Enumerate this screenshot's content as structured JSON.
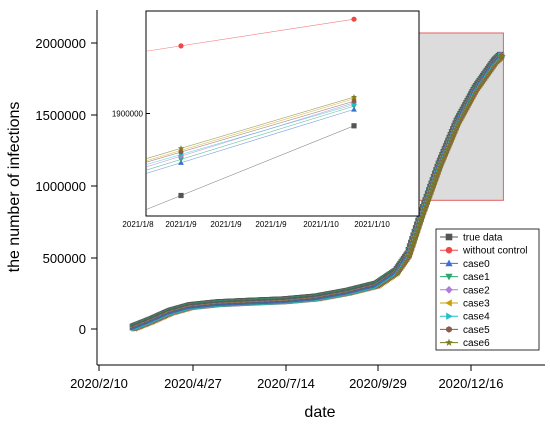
{
  "chart_data": {
    "type": "scatter",
    "title": "",
    "xlabel": "date",
    "ylabel": "the number of infections",
    "x_ticks": [
      "2020/2/10",
      "2020/4/27",
      "2020/7/14",
      "2020/9/29",
      "2020/12/16"
    ],
    "y_ticks": [
      "0",
      "500000",
      "1000000",
      "1500000",
      "2000000"
    ],
    "ylim": [
      -150000,
      2250000
    ],
    "grid": false,
    "legend_placement": "lower-right",
    "series": [
      {
        "name": "true data",
        "marker": "square",
        "color": "#555555"
      },
      {
        "name": "without control",
        "marker": "circle",
        "color": "#f04848"
      },
      {
        "name": "case0",
        "marker": "triangle-up",
        "color": "#3c6fd8"
      },
      {
        "name": "case1",
        "marker": "triangle-down",
        "color": "#2aa870"
      },
      {
        "name": "case2",
        "marker": "diamond",
        "color": "#b07cd8"
      },
      {
        "name": "case3",
        "marker": "triangle-left",
        "color": "#c8a000"
      },
      {
        "name": "case4",
        "marker": "triangle-right",
        "color": "#20c0d0"
      },
      {
        "name": "case5",
        "marker": "hexagon",
        "color": "#8a5a4a"
      },
      {
        "name": "case6",
        "marker": "star",
        "color": "#7a7a20"
      }
    ],
    "main_curve": {
      "x_dates": [
        "2020/3/10",
        "2020/3/25",
        "2020/4/10",
        "2020/4/27",
        "2020/5/20",
        "2020/6/15",
        "2020/7/14",
        "2020/8/10",
        "2020/9/5",
        "2020/9/29",
        "2020/10/15",
        "2020/10/25",
        "2020/11/5",
        "2020/11/20",
        "2020/12/5",
        "2020/12/20",
        "2021/1/5",
        "2021/1/10"
      ],
      "y_values": [
        10000,
        60000,
        120000,
        160000,
        180000,
        190000,
        200000,
        220000,
        260000,
        310000,
        400000,
        520000,
        800000,
        1150000,
        1450000,
        1680000,
        1870000,
        1910000
      ]
    },
    "zoom_region": {
      "x_range": [
        "2020/11/1",
        "2021/1/12"
      ],
      "y_range": [
        900000,
        2070000
      ]
    },
    "inset": {
      "x_ticks": [
        "2021/1/8",
        "2021/1/9",
        "2021/1/9",
        "2021/1/9",
        "2021/1/10",
        "2021/1/10"
      ],
      "y_tick": "1900000",
      "y_tick_value": 1900000,
      "ylim": [
        1875000,
        1925000
      ],
      "x_points": [
        "2021/1/9",
        "2021/1/10"
      ],
      "values": {
        "true data": [
          1880000,
          1897000
        ],
        "without control": [
          1916500,
          1923000
        ],
        "case0": [
          1888000,
          1901000
        ],
        "case1": [
          1888800,
          1901800
        ],
        "case2": [
          1889600,
          1902600
        ],
        "case3": [
          1891000,
          1903600
        ],
        "case4": [
          1890000,
          1902200
        ],
        "case5": [
          1890600,
          1903000
        ],
        "case6": [
          1891500,
          1904000
        ]
      }
    }
  }
}
